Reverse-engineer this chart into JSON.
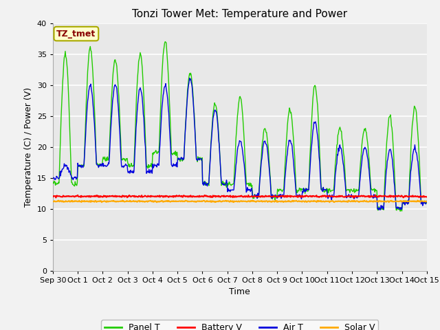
{
  "title": "Tonzi Tower Met: Temperature and Power",
  "xlabel": "Time",
  "ylabel": "Temperature (C) / Power (V)",
  "ylim": [
    0,
    40
  ],
  "yticks": [
    0,
    5,
    10,
    15,
    20,
    25,
    30,
    35,
    40
  ],
  "x_labels": [
    "Sep 30",
    "Oct 1",
    "Oct 2",
    "Oct 3",
    "Oct 4",
    "Oct 5",
    "Oct 6",
    "Oct 7",
    "Oct 8",
    "Oct 9",
    "Oct 10",
    "Oct 11",
    "Oct 12",
    "Oct 13",
    "Oct 14",
    "Oct 15"
  ],
  "annotation_text": "TZ_tmet",
  "annotation_color": "#880000",
  "annotation_bg": "#ffffcc",
  "annotation_border": "#aaaa00",
  "plot_bg_color": "#e8e8e8",
  "fig_bg_color": "#f2f2f2",
  "grid_color": "#ffffff",
  "panel_T_color": "#22cc00",
  "battery_V_color": "#ff0000",
  "air_T_color": "#0000dd",
  "solar_V_color": "#ffaa00",
  "panel_peaks": [
    35,
    36,
    34,
    35,
    37,
    32,
    27,
    28,
    23,
    26,
    30,
    23,
    23,
    25,
    26.5
  ],
  "panel_lows": [
    14,
    17,
    18,
    17,
    19,
    18,
    14,
    14,
    12,
    13,
    13,
    13,
    13,
    10,
    11
  ],
  "air_peaks": [
    17,
    30,
    30,
    29.5,
    30,
    31,
    26,
    21,
    21,
    21,
    24,
    20,
    20,
    19.5,
    20
  ],
  "air_lows": [
    15,
    17,
    17,
    16,
    17,
    18,
    14,
    13,
    12,
    12,
    13,
    12,
    12,
    10,
    11
  ],
  "battery_level": 12.0,
  "solar_level": 11.2
}
